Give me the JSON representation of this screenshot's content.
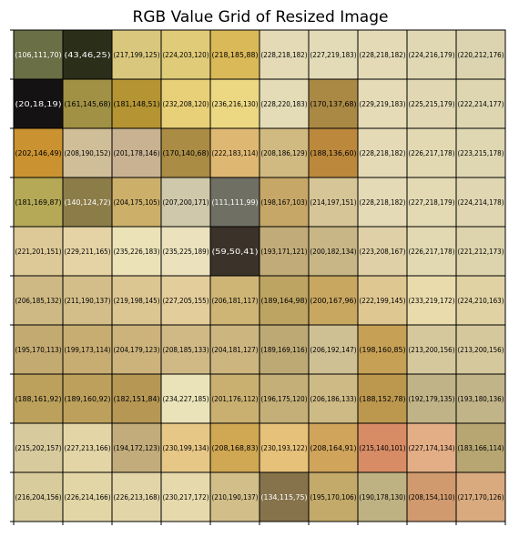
{
  "chart_data": {
    "type": "heatmap",
    "title": "RGB Value Grid of Resized Image",
    "grid": true,
    "rows": 10,
    "cols": 10,
    "cells": [
      [
        [
          106,
          111,
          70
        ],
        [
          43,
          46,
          25
        ],
        [
          217,
          199,
          125
        ],
        [
          224,
          203,
          120
        ],
        [
          218,
          185,
          88
        ],
        [
          228,
          218,
          182
        ],
        [
          227,
          219,
          183
        ],
        [
          228,
          218,
          182
        ],
        [
          224,
          216,
          179
        ],
        [
          220,
          212,
          176
        ]
      ],
      [
        [
          20,
          18,
          19
        ],
        [
          161,
          145,
          68
        ],
        [
          181,
          148,
          51
        ],
        [
          232,
          208,
          120
        ],
        [
          236,
          216,
          130
        ],
        [
          228,
          220,
          183
        ],
        [
          170,
          137,
          68
        ],
        [
          229,
          219,
          183
        ],
        [
          225,
          215,
          179
        ],
        [
          222,
          214,
          177
        ]
      ],
      [
        [
          202,
          146,
          49
        ],
        [
          208,
          190,
          152
        ],
        [
          201,
          178,
          146
        ],
        [
          170,
          140,
          68
        ],
        [
          222,
          183,
          114
        ],
        [
          208,
          186,
          129
        ],
        [
          188,
          136,
          60
        ],
        [
          228,
          218,
          182
        ],
        [
          226,
          217,
          178
        ],
        [
          223,
          215,
          178
        ]
      ],
      [
        [
          181,
          169,
          87
        ],
        [
          140,
          124,
          72
        ],
        [
          204,
          175,
          105
        ],
        [
          207,
          200,
          171
        ],
        [
          111,
          111,
          99
        ],
        [
          198,
          167,
          103
        ],
        [
          214,
          197,
          151
        ],
        [
          228,
          218,
          182
        ],
        [
          227,
          218,
          179
        ],
        [
          224,
          214,
          178
        ]
      ],
      [
        [
          221,
          201,
          151
        ],
        [
          229,
          211,
          165
        ],
        [
          235,
          226,
          183
        ],
        [
          235,
          225,
          189
        ],
        [
          59,
          50,
          41
        ],
        [
          193,
          171,
          121
        ],
        [
          200,
          182,
          134
        ],
        [
          223,
          208,
          167
        ],
        [
          226,
          217,
          178
        ],
        [
          221,
          212,
          173
        ]
      ],
      [
        [
          206,
          185,
          132
        ],
        [
          211,
          190,
          137
        ],
        [
          219,
          198,
          145
        ],
        [
          227,
          205,
          155
        ],
        [
          206,
          181,
          117
        ],
        [
          189,
          164,
          98
        ],
        [
          200,
          167,
          96
        ],
        [
          222,
          199,
          145
        ],
        [
          233,
          219,
          172
        ],
        [
          224,
          210,
          163
        ]
      ],
      [
        [
          195,
          170,
          113
        ],
        [
          199,
          173,
          114
        ],
        [
          204,
          179,
          123
        ],
        [
          208,
          185,
          133
        ],
        [
          204,
          181,
          127
        ],
        [
          189,
          169,
          116
        ],
        [
          206,
          192,
          147
        ],
        [
          198,
          160,
          85
        ],
        [
          213,
          200,
          156
        ],
        [
          213,
          200,
          156
        ]
      ],
      [
        [
          188,
          161,
          92
        ],
        [
          189,
          160,
          92
        ],
        [
          182,
          151,
          84
        ],
        [
          234,
          227,
          185
        ],
        [
          201,
          176,
          112
        ],
        [
          196,
          175,
          120
        ],
        [
          206,
          186,
          133
        ],
        [
          188,
          152,
          78
        ],
        [
          192,
          179,
          135
        ],
        [
          193,
          180,
          136
        ]
      ],
      [
        [
          215,
          202,
          157
        ],
        [
          227,
          213,
          166
        ],
        [
          194,
          172,
          123
        ],
        [
          230,
          199,
          134
        ],
        [
          208,
          168,
          83
        ],
        [
          230,
          193,
          122
        ],
        [
          208,
          164,
          91
        ],
        [
          215,
          140,
          101
        ],
        [
          227,
          174,
          134
        ],
        [
          183,
          166,
          114
        ]
      ],
      [
        [
          216,
          204,
          156
        ],
        [
          226,
          214,
          166
        ],
        [
          226,
          213,
          168
        ],
        [
          230,
          217,
          172
        ],
        [
          210,
          190,
          137
        ],
        [
          134,
          115,
          75
        ],
        [
          195,
          170,
          106
        ],
        [
          190,
          178,
          130
        ],
        [
          208,
          154,
          110
        ],
        [
          217,
          170,
          126
        ]
      ]
    ],
    "labels": [
      [
        "(106,111,70)",
        "(43,46,25)",
        "(217,199,125)",
        "(224,203,120)",
        "(218,185,88)",
        "(228,218,182)",
        "(227,219,183)",
        "(228,218,182)",
        "(224,216,179)",
        "(220,212,176)"
      ],
      [
        "(20,18,19)",
        "(161,145,68)",
        "(181,148,51)",
        "(232,208,120)",
        "(236,216,130)",
        "(228,220,183)",
        "(170,137,68)",
        "(229,219,183)",
        "(225,215,179)",
        "(222,214,177)"
      ],
      [
        "(202,146,49)",
        "(208,190,152)",
        "(201,178,146)",
        "(170,140,68)",
        "(222,183,114)",
        "(208,186,129)",
        "(188,136,60)",
        "(228,218,182)",
        "(226,217,178)",
        "(223,215,178)"
      ],
      [
        "(181,169,87)",
        "(140,124,72)",
        "(204,175,105)",
        "(207,200,171)",
        "(111,111,99)",
        "(198,167,103)",
        "(214,197,151)",
        "(228,218,182)",
        "(227,218,179)",
        "(224,214,178)"
      ],
      [
        "(221,201,151)",
        "(229,211,165)",
        "(235,226,183)",
        "(235,225,189)",
        "(59,50,41)",
        "(193,171,121)",
        "(200,182,134)",
        "(223,208,167)",
        "(226,217,178)",
        "(221,212,173)"
      ],
      [
        "(206,185,132)",
        "(211,190,137)",
        "(219,198,145)",
        "(227,205,155)",
        "(206,181,117)",
        "(189,164,98)",
        "(200,167,96)",
        "(222,199,145)",
        "(233,219,172)",
        "(224,210,163)"
      ],
      [
        "(195,170,113)",
        "(199,173,114)",
        "(204,179,123)",
        "(208,185,133)",
        "(204,181,127)",
        "(189,169,116)",
        "(206,192,147)",
        "(198,160,85)",
        "(213,200,156)",
        "(213,200,156)"
      ],
      [
        "(188,161,92)",
        "(189,160,92)",
        "(182,151,84)",
        "(234,227,185)",
        "(201,176,112)",
        "(196,175,120)",
        "(206,186,133)",
        "(188,152,78)",
        "(192,179,135)",
        "(193,180,136)"
      ],
      [
        "(215,202,157)",
        "(227,213,166)",
        "(194,172,123)",
        "(230,199,134)",
        "(208,168,83)",
        "(230,193,122)",
        "(208,164,91)",
        "(215,140,101)",
        "(227,174,134)",
        "(183,166,114)"
      ],
      [
        "(216,204,156)",
        "(226,214,166)",
        "(226,213,168)",
        "(230,217,172)",
        "(210,190,137)",
        "(134,115,75)",
        "(195,170,106)",
        "(190,178,130)",
        "(208,154,110)",
        "(217,170,126)"
      ]
    ]
  }
}
